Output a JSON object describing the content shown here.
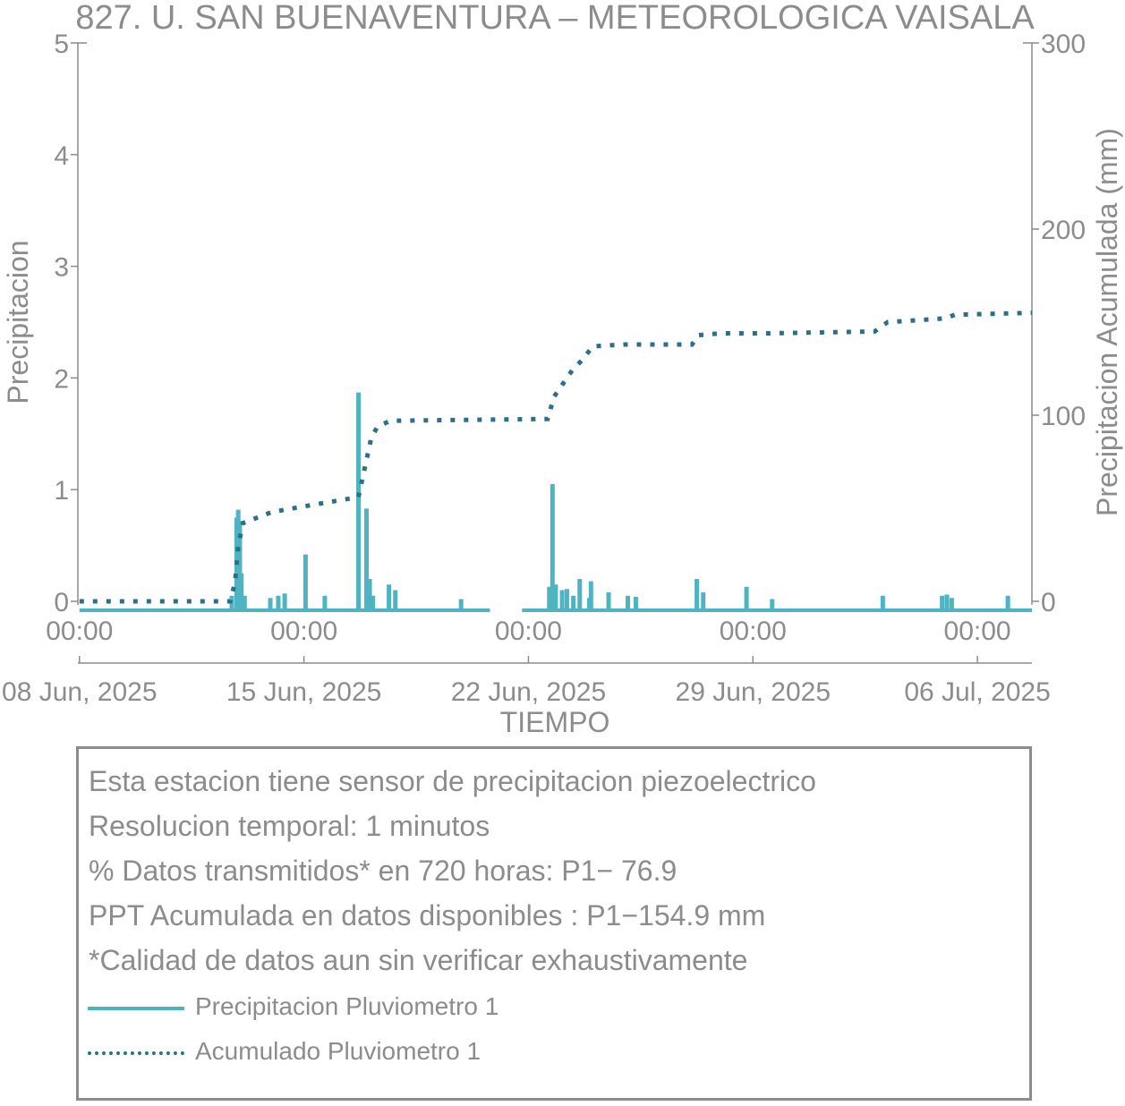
{
  "chart_data": {
    "type": "line",
    "title": "827. U. SAN BUENAVENTURA – METEOROLOGICA VAISALA",
    "xlabel": "TIEMPO",
    "ylabel_left": "Precipitacion",
    "ylabel_right": "Precipitacion Acumulada (mm)",
    "x_range_days": [
      -0.05,
      29.7
    ],
    "x_ticks": [
      {
        "day": 0,
        "time": "00:00",
        "date": "08 Jun, 2025"
      },
      {
        "day": 7,
        "time": "00:00",
        "date": "15 Jun, 2025"
      },
      {
        "day": 14,
        "time": "00:00",
        "date": "22 Jun, 2025"
      },
      {
        "day": 21,
        "time": "00:00",
        "date": "29 Jun, 2025"
      },
      {
        "day": 28,
        "time": "00:00",
        "date": "06 Jul, 2025"
      }
    ],
    "y_left": {
      "min": 0,
      "max": 5,
      "ticks": [
        "0",
        "1",
        "2",
        "3",
        "4",
        "5"
      ]
    },
    "y_right": {
      "min": 0,
      "max": 300,
      "ticks": [
        "0",
        "100",
        "200",
        "300"
      ]
    },
    "grid": false,
    "series": [
      {
        "name": "Precipitacion Pluviometro 1",
        "axis": "left",
        "style": "solid",
        "color": "#4fb4c2",
        "baseline": -0.08,
        "spikes": [
          [
            4.75,
            0.05
          ],
          [
            4.9,
            0.75
          ],
          [
            4.95,
            0.82
          ],
          [
            5.0,
            0.72
          ],
          [
            5.05,
            0.25
          ],
          [
            5.15,
            0.05
          ],
          [
            5.95,
            0.03
          ],
          [
            6.2,
            0.05
          ],
          [
            6.4,
            0.07
          ],
          [
            7.05,
            0.42
          ],
          [
            7.65,
            0.05
          ],
          [
            8.7,
            1.87
          ],
          [
            8.95,
            0.83
          ],
          [
            9.05,
            0.2
          ],
          [
            9.15,
            0.05
          ],
          [
            9.65,
            0.15
          ],
          [
            9.85,
            0.1
          ],
          [
            11.9,
            0.02
          ],
          [
            14.65,
            0.13
          ],
          [
            14.75,
            1.05
          ],
          [
            14.85,
            0.15
          ],
          [
            15.05,
            0.1
          ],
          [
            15.2,
            0.11
          ],
          [
            15.4,
            0.05
          ],
          [
            15.6,
            0.2
          ],
          [
            15.9,
            0.03
          ],
          [
            15.95,
            0.18
          ],
          [
            16.5,
            0.08
          ],
          [
            17.1,
            0.05
          ],
          [
            17.35,
            0.04
          ],
          [
            19.25,
            0.2
          ],
          [
            19.45,
            0.08
          ],
          [
            20.8,
            0.13
          ],
          [
            21.6,
            0.02
          ],
          [
            25.05,
            0.05
          ],
          [
            26.9,
            0.05
          ],
          [
            27.05,
            0.06
          ],
          [
            27.2,
            0.03
          ],
          [
            28.95,
            0.05
          ]
        ],
        "gaps": [
          [
            12.8,
            13.8
          ]
        ]
      },
      {
        "name": "Acumulado Pluviometro 1",
        "axis": "right",
        "style": "dotted",
        "color": "#2e6e86",
        "x": [
          0,
          4.7,
          4.85,
          4.95,
          5.1,
          6.0,
          7.0,
          8.7,
          8.9,
          9.1,
          9.3,
          9.7,
          14.6,
          14.8,
          15.4,
          15.7,
          16.0,
          17.0,
          19.1,
          19.3,
          20.0,
          21.5,
          24.8,
          25.2,
          27.0,
          27.3,
          29.7
        ],
        "y": [
          0,
          0,
          10,
          30,
          42,
          48,
          51,
          56,
          72,
          88,
          94,
          97,
          98,
          110,
          125,
          130,
          137,
          138,
          138,
          143,
          144,
          144,
          145,
          150,
          152,
          154,
          155
        ]
      }
    ]
  },
  "info": {
    "line1": "Esta estacion tiene sensor de precipitacion piezoelectrico",
    "line2": "Resolucion temporal: 1 minutos",
    "line3": "% Datos transmitidos* en 720 horas: P1− 76.9",
    "line4": "PPT Acumulada en datos disponibles : P1−154.9 mm",
    "line5": "*Calidad de datos aun sin verificar exhaustivamente"
  },
  "legend": {
    "item1": "Precipitacion Pluviometro 1",
    "item2": "Acumulado Pluviometro 1"
  }
}
